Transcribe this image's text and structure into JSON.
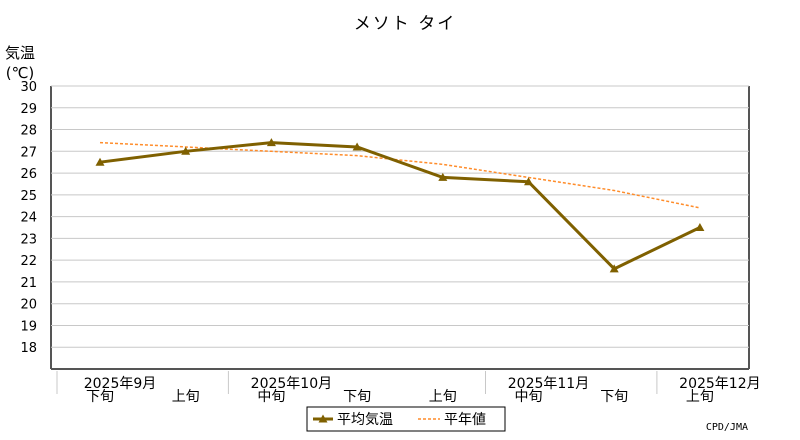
{
  "chart_data": {
    "type": "line",
    "title": "メソト タイ",
    "ylabel": "気温",
    "ylabel_unit": "(℃)",
    "ylim": [
      17,
      30
    ],
    "yticks": [
      18,
      19,
      20,
      21,
      22,
      23,
      24,
      25,
      26,
      27,
      28,
      29,
      30
    ],
    "grid": true,
    "categories": [
      "下旬",
      "上旬",
      "中旬",
      "下旬",
      "上旬",
      "中旬",
      "下旬",
      "上旬"
    ],
    "month_labels": [
      {
        "label": "2025年9月",
        "index": 0
      },
      {
        "label": "2025年10月",
        "index": 2
      },
      {
        "label": "2025年11月",
        "index": 5
      },
      {
        "label": "2025年12月",
        "index": 7
      }
    ],
    "series": [
      {
        "name": "平均気温",
        "color": "#7f6000",
        "style": "solid-triangle",
        "values": [
          26.5,
          27.0,
          27.4,
          27.2,
          25.8,
          25.6,
          21.6,
          23.5
        ]
      },
      {
        "name": "平年値",
        "color": "#ff8c2a",
        "style": "dotted",
        "values": [
          27.4,
          27.2,
          27.0,
          26.8,
          26.4,
          25.8,
          25.2,
          24.4
        ]
      }
    ],
    "legend": "bottom-center",
    "credit": "CPD/JMA"
  }
}
